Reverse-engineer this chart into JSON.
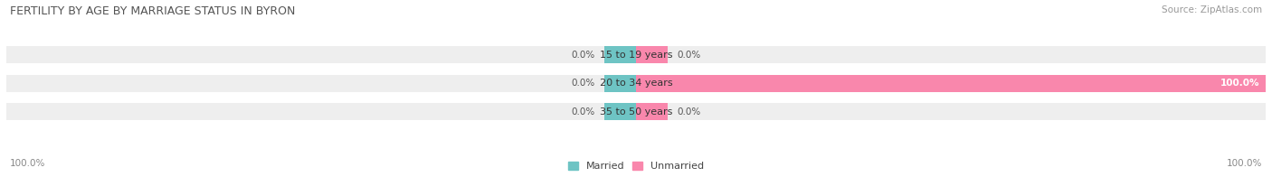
{
  "title": "FERTILITY BY AGE BY MARRIAGE STATUS IN BYRON",
  "source": "Source: ZipAtlas.com",
  "categories": [
    "15 to 19 years",
    "20 to 34 years",
    "35 to 50 years"
  ],
  "married_values": [
    0.0,
    0.0,
    0.0
  ],
  "unmarried_values": [
    0.0,
    100.0,
    0.0
  ],
  "married_color": "#6ec4c4",
  "unmarried_color": "#f987ac",
  "bar_bg_color": "#eeeeee",
  "title_fontsize": 9,
  "label_fontsize": 8,
  "tick_fontsize": 7.5,
  "source_fontsize": 7.5,
  "bottom_left_label": "100.0%",
  "bottom_right_label": "100.0%",
  "figsize": [
    14.06,
    1.96
  ],
  "dpi": 100
}
